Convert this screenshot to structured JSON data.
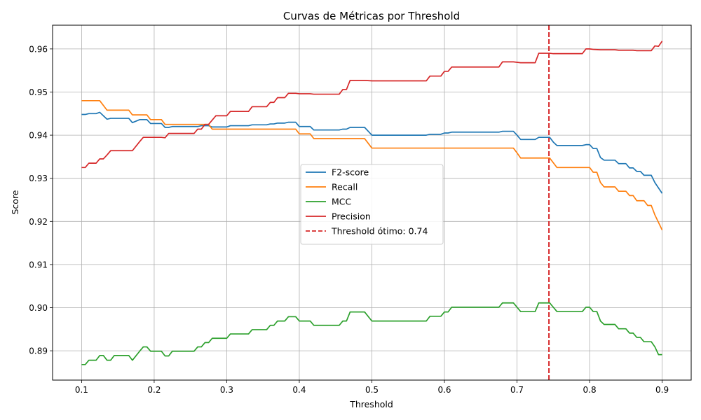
{
  "chart_data": {
    "type": "line",
    "title": "Curvas de Métricas por Threshold",
    "xlabel": "Threshold",
    "ylabel": "Score",
    "xlim": [
      0.06,
      0.94
    ],
    "ylim": [
      0.8832,
      0.9655
    ],
    "xticks": [
      0.1,
      0.2,
      0.3,
      0.4,
      0.5,
      0.6,
      0.7,
      0.8,
      0.9
    ],
    "xtick_labels": [
      "0.1",
      "0.2",
      "0.3",
      "0.4",
      "0.5",
      "0.6",
      "0.7",
      "0.8",
      "0.9"
    ],
    "yticks": [
      0.89,
      0.9,
      0.91,
      0.92,
      0.93,
      0.94,
      0.95,
      0.96
    ],
    "ytick_labels": [
      "0.89",
      "0.90",
      "0.91",
      "0.92",
      "0.93",
      "0.94",
      "0.95",
      "0.96"
    ],
    "grid": true,
    "legend_position": "center-right",
    "threshold_line": {
      "x": 0.744,
      "label": "Threshold ótimo: 0.74",
      "color": "#d62728",
      "style": "dashed"
    },
    "series": [
      {
        "name": "F2-score",
        "color": "#1f77b4",
        "points": [
          [
            0.1,
            0.9448
          ],
          [
            0.105,
            0.9448
          ],
          [
            0.11,
            0.945
          ],
          [
            0.12,
            0.945
          ],
          [
            0.125,
            0.9453
          ],
          [
            0.13,
            0.9445
          ],
          [
            0.135,
            0.9437
          ],
          [
            0.14,
            0.9439
          ],
          [
            0.165,
            0.9439
          ],
          [
            0.17,
            0.9429
          ],
          [
            0.18,
            0.9436
          ],
          [
            0.19,
            0.9436
          ],
          [
            0.195,
            0.9427
          ],
          [
            0.21,
            0.9427
          ],
          [
            0.215,
            0.9418
          ],
          [
            0.22,
            0.9418
          ],
          [
            0.225,
            0.942
          ],
          [
            0.26,
            0.942
          ],
          [
            0.265,
            0.9422
          ],
          [
            0.275,
            0.9422
          ],
          [
            0.28,
            0.9419
          ],
          [
            0.3,
            0.9419
          ],
          [
            0.305,
            0.9422
          ],
          [
            0.33,
            0.9422
          ],
          [
            0.335,
            0.9424
          ],
          [
            0.355,
            0.9424
          ],
          [
            0.36,
            0.9426
          ],
          [
            0.365,
            0.9426
          ],
          [
            0.37,
            0.9428
          ],
          [
            0.38,
            0.9428
          ],
          [
            0.385,
            0.943
          ],
          [
            0.39,
            0.943
          ],
          [
            0.395,
            0.943
          ],
          [
            0.4,
            0.942
          ],
          [
            0.415,
            0.942
          ],
          [
            0.42,
            0.9412
          ],
          [
            0.455,
            0.9412
          ],
          [
            0.46,
            0.9414
          ],
          [
            0.465,
            0.9414
          ],
          [
            0.47,
            0.9418
          ],
          [
            0.49,
            0.9418
          ],
          [
            0.5,
            0.94
          ],
          [
            0.575,
            0.94
          ],
          [
            0.58,
            0.9402
          ],
          [
            0.595,
            0.9402
          ],
          [
            0.6,
            0.9405
          ],
          [
            0.605,
            0.9405
          ],
          [
            0.61,
            0.9407
          ],
          [
            0.675,
            0.9407
          ],
          [
            0.68,
            0.9409
          ],
          [
            0.695,
            0.9409
          ],
          [
            0.7,
            0.94
          ],
          [
            0.705,
            0.939
          ],
          [
            0.725,
            0.939
          ],
          [
            0.73,
            0.9395
          ],
          [
            0.745,
            0.9395
          ],
          [
            0.75,
            0.9384
          ],
          [
            0.755,
            0.9376
          ],
          [
            0.79,
            0.9376
          ],
          [
            0.795,
            0.9378
          ],
          [
            0.8,
            0.9378
          ],
          [
            0.805,
            0.9369
          ],
          [
            0.81,
            0.9369
          ],
          [
            0.815,
            0.9348
          ],
          [
            0.82,
            0.9342
          ],
          [
            0.835,
            0.9342
          ],
          [
            0.84,
            0.9334
          ],
          [
            0.85,
            0.9334
          ],
          [
            0.855,
            0.9324
          ],
          [
            0.86,
            0.9324
          ],
          [
            0.865,
            0.9316
          ],
          [
            0.87,
            0.9316
          ],
          [
            0.875,
            0.9307
          ],
          [
            0.885,
            0.9307
          ],
          [
            0.89,
            0.929
          ],
          [
            0.9,
            0.9265
          ]
        ]
      },
      {
        "name": "Recall",
        "color": "#ff7f0e",
        "points": [
          [
            0.1,
            0.948
          ],
          [
            0.125,
            0.948
          ],
          [
            0.135,
            0.9458
          ],
          [
            0.165,
            0.9458
          ],
          [
            0.17,
            0.9447
          ],
          [
            0.19,
            0.9447
          ],
          [
            0.195,
            0.9436
          ],
          [
            0.21,
            0.9436
          ],
          [
            0.215,
            0.9425
          ],
          [
            0.27,
            0.9425
          ],
          [
            0.275,
            0.9425
          ],
          [
            0.28,
            0.9414
          ],
          [
            0.395,
            0.9414
          ],
          [
            0.4,
            0.9403
          ],
          [
            0.415,
            0.9403
          ],
          [
            0.42,
            0.9392
          ],
          [
            0.49,
            0.9392
          ],
          [
            0.5,
            0.937
          ],
          [
            0.695,
            0.937
          ],
          [
            0.7,
            0.9359
          ],
          [
            0.705,
            0.9347
          ],
          [
            0.745,
            0.9347
          ],
          [
            0.75,
            0.9336
          ],
          [
            0.755,
            0.9325
          ],
          [
            0.8,
            0.9325
          ],
          [
            0.805,
            0.9314
          ],
          [
            0.81,
            0.9314
          ],
          [
            0.815,
            0.929
          ],
          [
            0.82,
            0.928
          ],
          [
            0.835,
            0.928
          ],
          [
            0.84,
            0.927
          ],
          [
            0.85,
            0.927
          ],
          [
            0.855,
            0.926
          ],
          [
            0.86,
            0.926
          ],
          [
            0.865,
            0.9248
          ],
          [
            0.875,
            0.9248
          ],
          [
            0.88,
            0.9237
          ],
          [
            0.885,
            0.9237
          ],
          [
            0.89,
            0.9215
          ],
          [
            0.9,
            0.918
          ]
        ]
      },
      {
        "name": "MCC",
        "color": "#2ca02c",
        "points": [
          [
            0.1,
            0.8868
          ],
          [
            0.105,
            0.8868
          ],
          [
            0.11,
            0.8878
          ],
          [
            0.115,
            0.8878
          ],
          [
            0.12,
            0.8878
          ],
          [
            0.125,
            0.8889
          ],
          [
            0.13,
            0.8889
          ],
          [
            0.135,
            0.8878
          ],
          [
            0.14,
            0.8878
          ],
          [
            0.145,
            0.8889
          ],
          [
            0.165,
            0.8889
          ],
          [
            0.17,
            0.8878
          ],
          [
            0.18,
            0.8899
          ],
          [
            0.185,
            0.8909
          ],
          [
            0.19,
            0.8909
          ],
          [
            0.195,
            0.8899
          ],
          [
            0.21,
            0.8899
          ],
          [
            0.215,
            0.8888
          ],
          [
            0.22,
            0.8888
          ],
          [
            0.225,
            0.8899
          ],
          [
            0.255,
            0.8899
          ],
          [
            0.26,
            0.8909
          ],
          [
            0.265,
            0.8909
          ],
          [
            0.27,
            0.8919
          ],
          [
            0.275,
            0.8919
          ],
          [
            0.28,
            0.8929
          ],
          [
            0.3,
            0.8929
          ],
          [
            0.305,
            0.8939
          ],
          [
            0.33,
            0.8939
          ],
          [
            0.335,
            0.8949
          ],
          [
            0.355,
            0.8949
          ],
          [
            0.36,
            0.8959
          ],
          [
            0.365,
            0.8959
          ],
          [
            0.37,
            0.8969
          ],
          [
            0.38,
            0.8969
          ],
          [
            0.385,
            0.8979
          ],
          [
            0.395,
            0.8979
          ],
          [
            0.4,
            0.8969
          ],
          [
            0.415,
            0.8969
          ],
          [
            0.42,
            0.8959
          ],
          [
            0.455,
            0.8959
          ],
          [
            0.46,
            0.8969
          ],
          [
            0.465,
            0.8969
          ],
          [
            0.47,
            0.899
          ],
          [
            0.49,
            0.899
          ],
          [
            0.5,
            0.8969
          ],
          [
            0.575,
            0.8969
          ],
          [
            0.58,
            0.898
          ],
          [
            0.595,
            0.898
          ],
          [
            0.6,
            0.899
          ],
          [
            0.605,
            0.899
          ],
          [
            0.61,
            0.9001
          ],
          [
            0.675,
            0.9001
          ],
          [
            0.68,
            0.9011
          ],
          [
            0.695,
            0.9011
          ],
          [
            0.7,
            0.9001
          ],
          [
            0.705,
            0.8991
          ],
          [
            0.725,
            0.8991
          ],
          [
            0.73,
            0.9011
          ],
          [
            0.745,
            0.9011
          ],
          [
            0.75,
            0.9001
          ],
          [
            0.755,
            0.8991
          ],
          [
            0.79,
            0.8991
          ],
          [
            0.795,
            0.9001
          ],
          [
            0.8,
            0.9001
          ],
          [
            0.805,
            0.8991
          ],
          [
            0.81,
            0.8991
          ],
          [
            0.815,
            0.8969
          ],
          [
            0.82,
            0.8961
          ],
          [
            0.835,
            0.8961
          ],
          [
            0.84,
            0.8951
          ],
          [
            0.85,
            0.8951
          ],
          [
            0.855,
            0.8941
          ],
          [
            0.86,
            0.8941
          ],
          [
            0.865,
            0.8931
          ],
          [
            0.87,
            0.8931
          ],
          [
            0.875,
            0.8921
          ],
          [
            0.885,
            0.8921
          ],
          [
            0.89,
            0.8909
          ],
          [
            0.895,
            0.8891
          ],
          [
            0.9,
            0.8891
          ]
        ]
      },
      {
        "name": "Precision",
        "color": "#d62728",
        "points": [
          [
            0.1,
            0.9325
          ],
          [
            0.105,
            0.9325
          ],
          [
            0.11,
            0.9335
          ],
          [
            0.12,
            0.9335
          ],
          [
            0.125,
            0.9345
          ],
          [
            0.13,
            0.9345
          ],
          [
            0.135,
            0.9354
          ],
          [
            0.14,
            0.9364
          ],
          [
            0.165,
            0.9364
          ],
          [
            0.17,
            0.9364
          ],
          [
            0.18,
            0.9385
          ],
          [
            0.185,
            0.9395
          ],
          [
            0.21,
            0.9395
          ],
          [
            0.215,
            0.9394
          ],
          [
            0.22,
            0.9404
          ],
          [
            0.255,
            0.9404
          ],
          [
            0.26,
            0.9414
          ],
          [
            0.265,
            0.9414
          ],
          [
            0.27,
            0.9425
          ],
          [
            0.275,
            0.9425
          ],
          [
            0.28,
            0.9435
          ],
          [
            0.285,
            0.9445
          ],
          [
            0.3,
            0.9445
          ],
          [
            0.305,
            0.9455
          ],
          [
            0.33,
            0.9455
          ],
          [
            0.335,
            0.9466
          ],
          [
            0.355,
            0.9466
          ],
          [
            0.36,
            0.9476
          ],
          [
            0.365,
            0.9476
          ],
          [
            0.37,
            0.9487
          ],
          [
            0.38,
            0.9487
          ],
          [
            0.385,
            0.9497
          ],
          [
            0.395,
            0.9497
          ],
          [
            0.4,
            0.9496
          ],
          [
            0.415,
            0.9496
          ],
          [
            0.42,
            0.9495
          ],
          [
            0.455,
            0.9495
          ],
          [
            0.46,
            0.9506
          ],
          [
            0.465,
            0.9506
          ],
          [
            0.47,
            0.9527
          ],
          [
            0.49,
            0.9527
          ],
          [
            0.5,
            0.9526
          ],
          [
            0.575,
            0.9526
          ],
          [
            0.58,
            0.9537
          ],
          [
            0.595,
            0.9537
          ],
          [
            0.6,
            0.9548
          ],
          [
            0.605,
            0.9548
          ],
          [
            0.61,
            0.9558
          ],
          [
            0.675,
            0.9558
          ],
          [
            0.68,
            0.957
          ],
          [
            0.695,
            0.957
          ],
          [
            0.7,
            0.9569
          ],
          [
            0.705,
            0.9568
          ],
          [
            0.725,
            0.9568
          ],
          [
            0.73,
            0.959
          ],
          [
            0.745,
            0.959
          ],
          [
            0.75,
            0.9589
          ],
          [
            0.755,
            0.9589
          ],
          [
            0.79,
            0.9589
          ],
          [
            0.795,
            0.96
          ],
          [
            0.8,
            0.96
          ],
          [
            0.805,
            0.9599
          ],
          [
            0.815,
            0.9598
          ],
          [
            0.835,
            0.9598
          ],
          [
            0.84,
            0.9597
          ],
          [
            0.86,
            0.9597
          ],
          [
            0.865,
            0.9596
          ],
          [
            0.885,
            0.9596
          ],
          [
            0.89,
            0.9607
          ],
          [
            0.895,
            0.9606
          ],
          [
            0.9,
            0.9618
          ]
        ]
      }
    ]
  }
}
